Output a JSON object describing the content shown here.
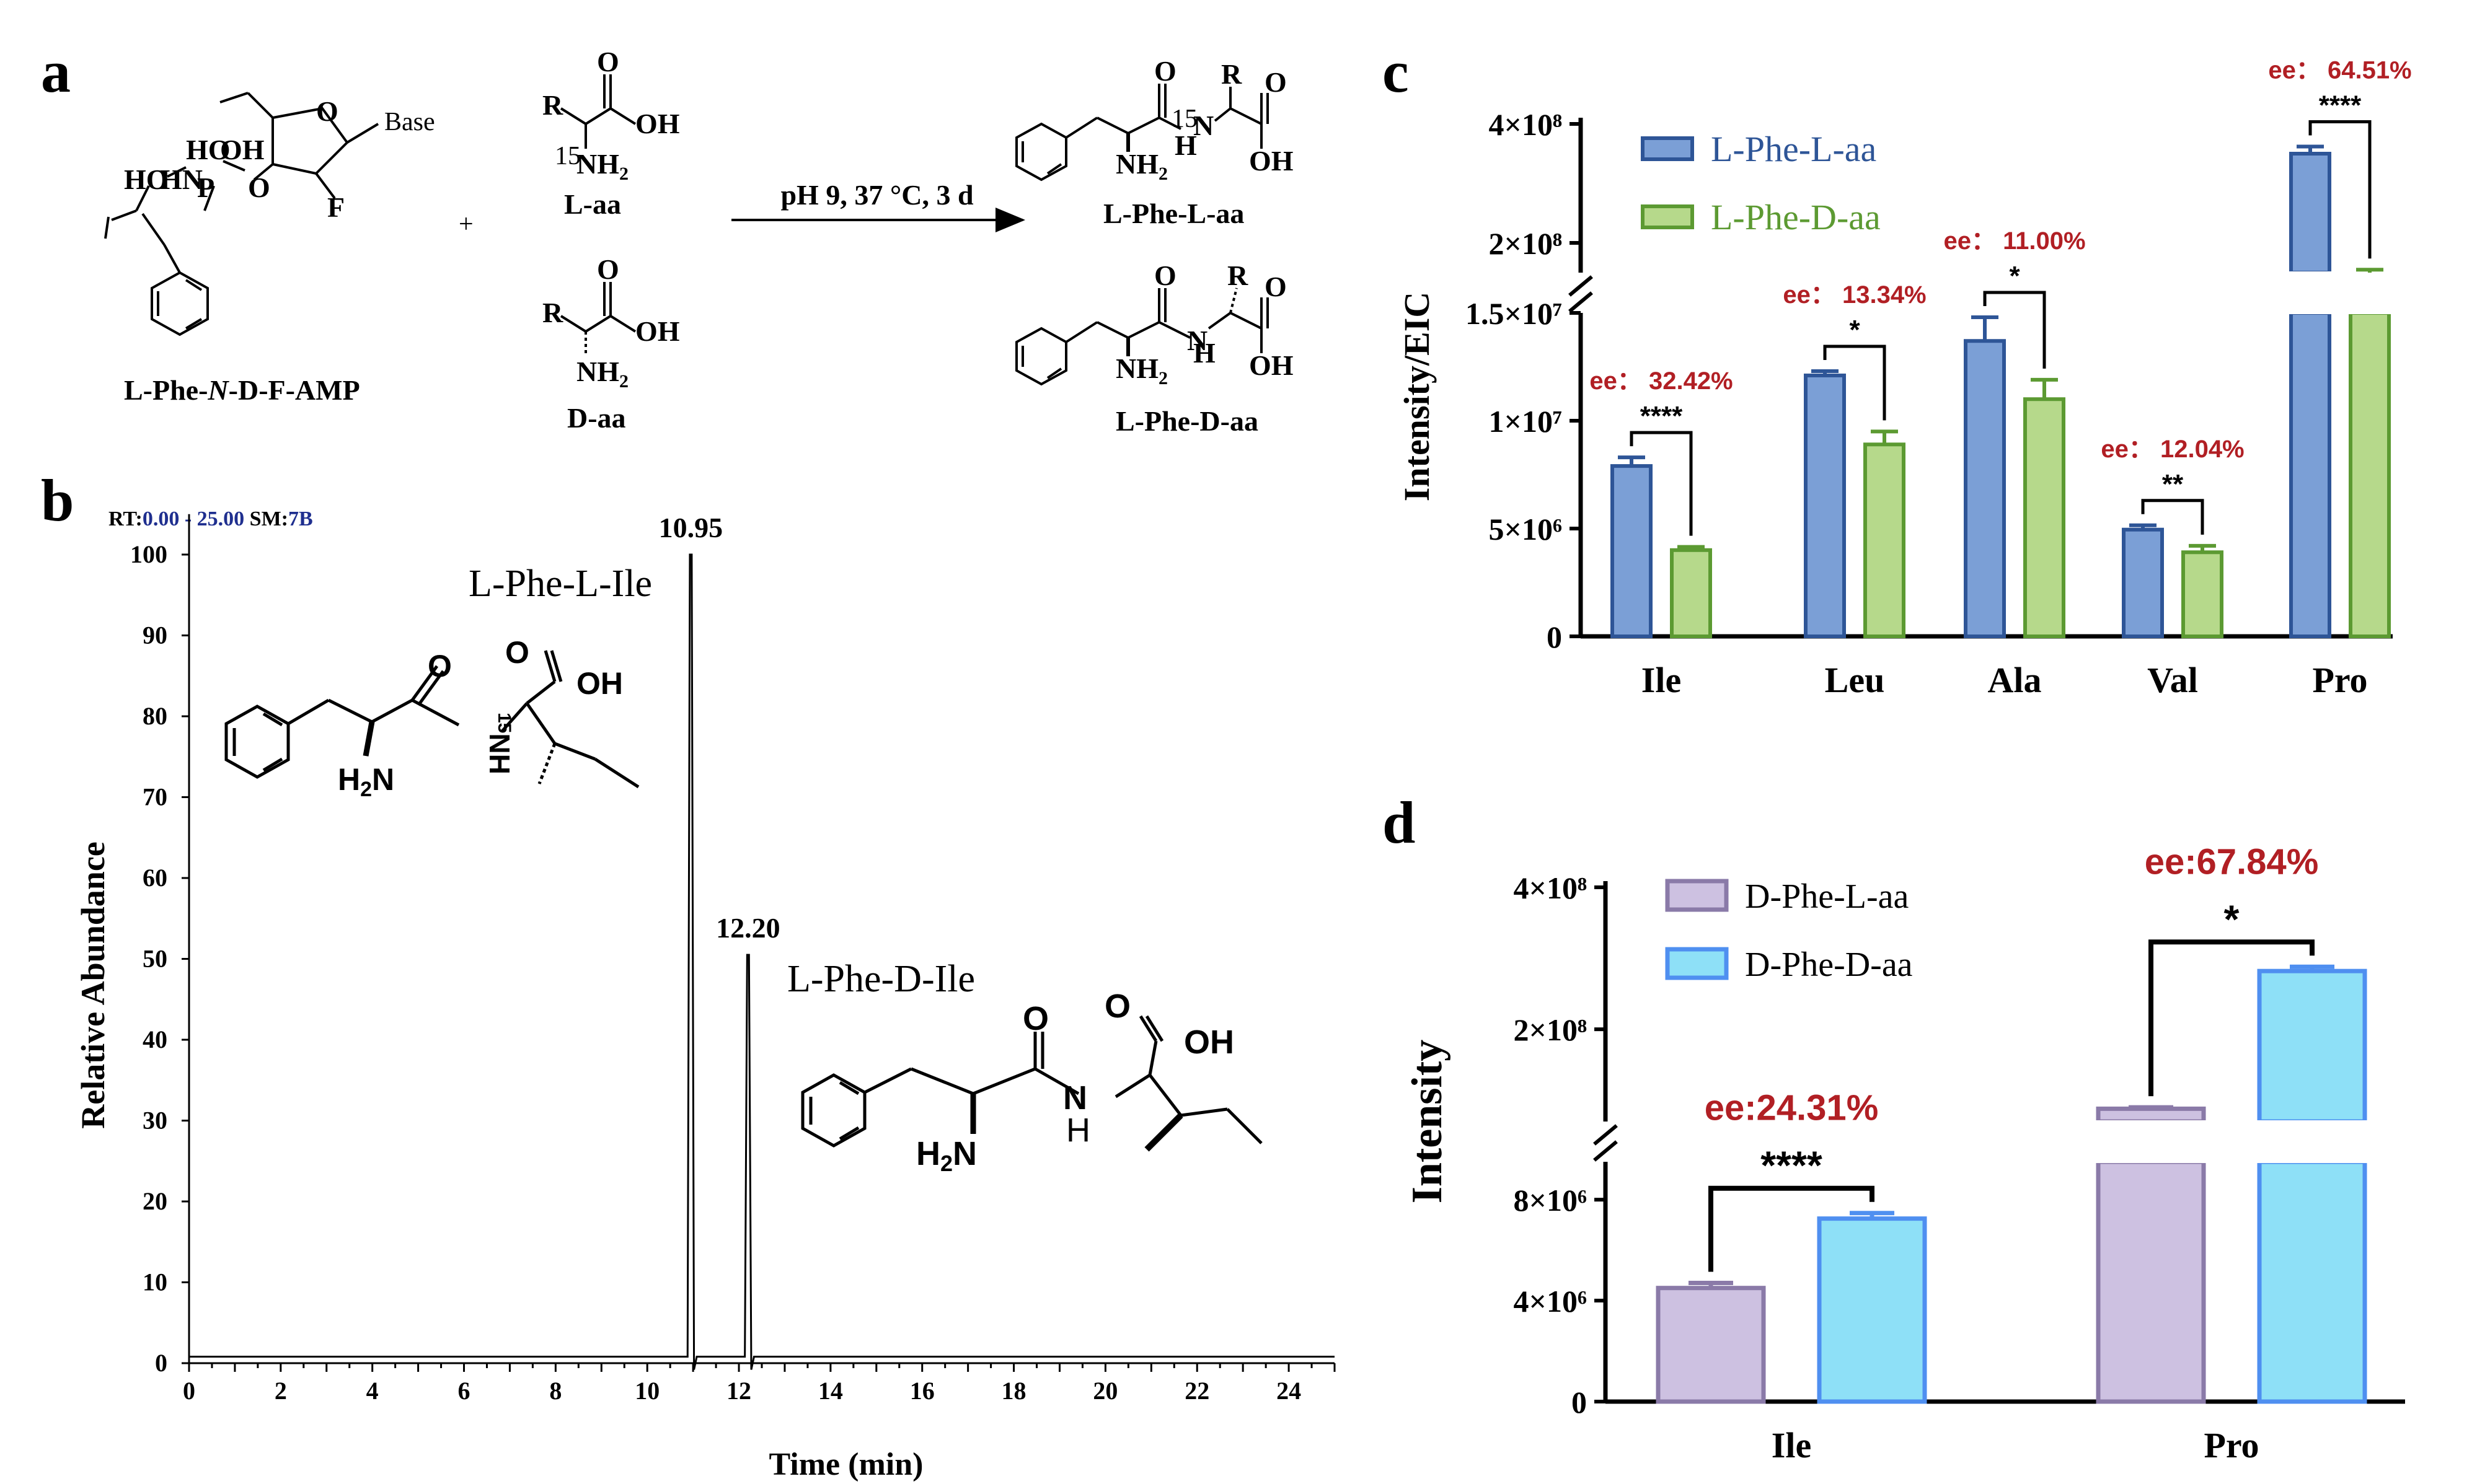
{
  "panels": {
    "a": "a",
    "b": "b",
    "c": "c",
    "d": "d"
  },
  "panel_a": {
    "reactant": "L-Phe-N-D-F-AMP",
    "reactant_parts": {
      "pre": "L-Phe-",
      "italic": "N",
      "post": "-D-F-AMP"
    },
    "plus": "+",
    "laa": "L-aa",
    "daa": "D-aa",
    "conditions": "pH 9, 37 °C, 3 d",
    "product1": "L-Phe-L-aa",
    "product2": "L-Phe-D-aa",
    "atoms": {
      "base": "Base",
      "f": "F",
      "p": "P",
      "ho": "HO",
      "hn": "HN",
      "oh": "OH",
      "o": "O",
      "r": "R",
      "nh2": "NH",
      "two": "2",
      "n15": "15",
      "n": "N",
      "h": "H",
      "ho2": "HO"
    }
  },
  "chart_data": [
    {
      "id": "b",
      "type": "line",
      "title": "",
      "header": {
        "rt_label": "RT:",
        "rt_value": "0.00 - 25.00",
        "sm_label": " SM:",
        "sm_value": "7B"
      },
      "xlabel": "Time (min)",
      "ylabel": "Relative Abundance",
      "xlim": [
        0,
        25
      ],
      "ylim": [
        0,
        100
      ],
      "xticks": [
        0,
        2,
        4,
        6,
        8,
        10,
        12,
        14,
        16,
        18,
        20,
        22,
        24
      ],
      "yticks": [
        0,
        10,
        20,
        30,
        40,
        50,
        60,
        70,
        80,
        90,
        100
      ],
      "baseline": 0.8,
      "peaks": [
        {
          "rt": 10.95,
          "height": 100,
          "label": "10.95",
          "compound": "L-Phe-L-Ile"
        },
        {
          "rt": 12.2,
          "height": 50.5,
          "label": "12.20",
          "compound": "L-Phe-D-Ile"
        }
      ]
    },
    {
      "id": "c",
      "type": "bar",
      "title": "",
      "xlabel": "",
      "ylabel": "Intensity/EIC",
      "ylim": [
        0,
        400000000
      ],
      "y_axis_break": {
        "lower_top": 15000000,
        "upper_bottom": 150000000
      },
      "lower_ticks": [
        {
          "v": 0,
          "label": "0"
        },
        {
          "v": 5000000,
          "label": "5×10⁶"
        },
        {
          "v": 10000000,
          "label": "1×10⁷"
        },
        {
          "v": 15000000,
          "label": "1.5×10⁷"
        }
      ],
      "upper_ticks": [
        {
          "v": 200000000,
          "label": "2×10⁸"
        },
        {
          "v": 400000000,
          "label": "4×10⁸"
        }
      ],
      "legend_position": "top-left",
      "categories": [
        "Ile",
        "Leu",
        "Ala",
        "Val",
        "Pro"
      ],
      "series": [
        {
          "name": "L-Phe-L-aa",
          "values": [
            7900000,
            12100000,
            13700000,
            4950000,
            350000000
          ],
          "errors": [
            400000,
            200000,
            1100000,
            200000,
            12000000
          ],
          "fill": "#7b9fd6",
          "stroke": "#2e5597"
        },
        {
          "name": "L-Phe-D-aa",
          "values": [
            4000000,
            8900000,
            11000000,
            3900000,
            150000000
          ],
          "errors": [
            150000,
            600000,
            900000,
            300000,
            5000000
          ],
          "fill": "#b6d98b",
          "stroke": "#5c9a32"
        }
      ],
      "ee": [
        "ee： 32.42%",
        "ee： 13.34%",
        "ee： 11.00%",
        "ee： 12.04%",
        "ee： 64.51%"
      ],
      "significance": [
        "****",
        "*",
        "*",
        "**",
        "****"
      ]
    },
    {
      "id": "d",
      "type": "bar",
      "title": "",
      "xlabel": "",
      "ylabel": "Intensity",
      "ylim": [
        0,
        400000000
      ],
      "y_axis_break": {
        "lower_top": 9500000,
        "upper_bottom": 70000000
      },
      "lower_ticks": [
        {
          "v": 0,
          "label": "0"
        },
        {
          "v": 4000000,
          "label": "4×10⁶"
        },
        {
          "v": 8000000,
          "label": "8×10⁶"
        }
      ],
      "upper_ticks": [
        {
          "v": 200000000,
          "label": "2×10⁸"
        },
        {
          "v": 400000000,
          "label": "4×10⁸"
        }
      ],
      "legend_position": "top-left",
      "categories": [
        "Ile",
        "Pro"
      ],
      "series": [
        {
          "name": "D-Phe-L-aa",
          "values": [
            4500000,
            88000000
          ],
          "errors": [
            200000,
            2000000
          ],
          "fill": "#cdc1e1",
          "stroke": "#8a7aa8"
        },
        {
          "name": "D-Phe-D-aa",
          "values": [
            7250000,
            282000000
          ],
          "errors": [
            220000,
            6000000
          ],
          "fill": "#8ee0f7",
          "stroke": "#4f8ff0"
        }
      ],
      "ee": [
        "ee:24.31%",
        "ee:67.84%"
      ],
      "significance": [
        "****",
        "*"
      ]
    }
  ]
}
